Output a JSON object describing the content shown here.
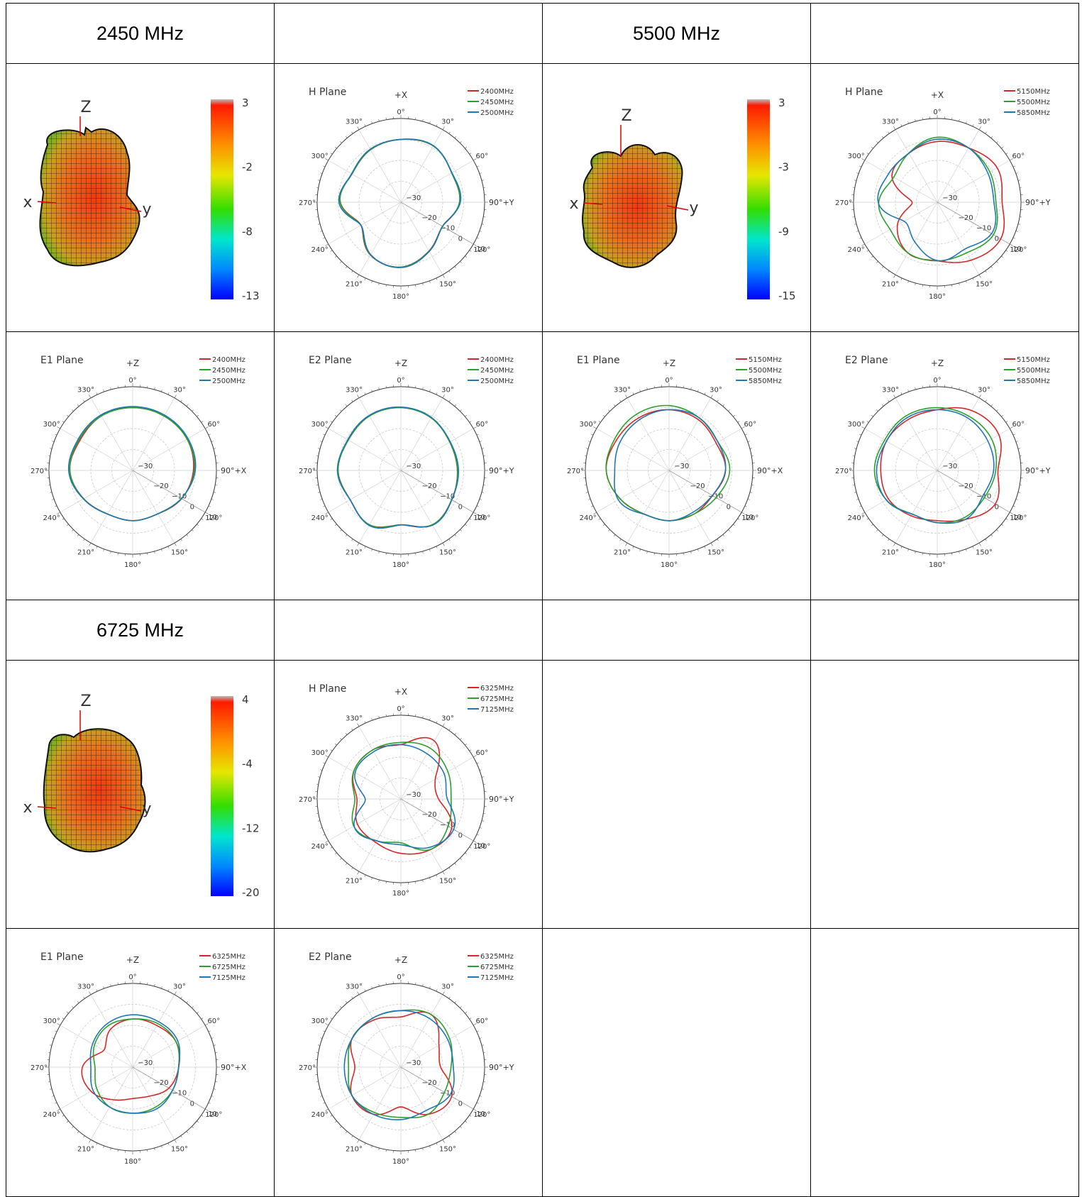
{
  "headers": [
    {
      "row": 0,
      "col": 0,
      "text": "2450 MHz"
    },
    {
      "row": 0,
      "col": 2,
      "text": "5500 MHz"
    },
    {
      "row": 3,
      "col": 0,
      "text": "6725 MHz"
    }
  ],
  "angle_labels": [
    "0°",
    "30°",
    "60°",
    "90°",
    "120°",
    "150°",
    "180°",
    "210°",
    "240°",
    "270°",
    "300°",
    "330°"
  ],
  "radial_labels": [
    "−30",
    "−20",
    "−10",
    "0",
    "10"
  ],
  "colors": {
    "red": "#d62728",
    "green": "#2ca02c",
    "blue": "#1f77b4"
  },
  "chart_data": [
    {
      "id": "p3d-2450",
      "row": 1,
      "col": 0,
      "type": "3d-pattern",
      "colorbar": {
        "ticks": [
          "3",
          "-2",
          "-8",
          "-13"
        ],
        "max": 3,
        "min": -13
      },
      "axes_labels": {
        "z": "Z",
        "x": "x",
        "y": "y"
      },
      "shape": "a"
    },
    {
      "id": "h-2450",
      "row": 1,
      "col": 1,
      "type": "polar",
      "title": "H Plane",
      "top_axis": "+X",
      "right_axis": "+Y",
      "rlim": [
        -30,
        10
      ],
      "r_ticks": [
        -30,
        -20,
        -10,
        0,
        10
      ],
      "series": [
        {
          "name": "2400MHz",
          "color": "red",
          "r": [
            0,
            1,
            -2,
            -2,
            -7,
            -3,
            1,
            -1,
            -8,
            -1,
            -3,
            -1
          ],
          "phase": -1
        },
        {
          "name": "2450MHz",
          "color": "green",
          "r": [
            0,
            1,
            -2,
            -2,
            -7,
            -3,
            1,
            -1,
            -8,
            -1,
            -3,
            -1
          ],
          "phase": 0
        },
        {
          "name": "2500MHz",
          "color": "blue",
          "r": [
            0,
            1.2,
            -1.8,
            -1.5,
            -7,
            -3,
            1.2,
            -1,
            -8,
            -0.5,
            -2.8,
            -0.8
          ],
          "phase": 1
        }
      ]
    },
    {
      "id": "p3d-5500",
      "row": 1,
      "col": 2,
      "type": "3d-pattern",
      "colorbar": {
        "ticks": [
          "3",
          "-3",
          "-9",
          "-15"
        ],
        "max": 3,
        "min": -15
      },
      "axes_labels": {
        "z": "Z",
        "x": "x",
        "y": "y"
      },
      "shape": "b"
    },
    {
      "id": "h-5500",
      "row": 1,
      "col": 3,
      "type": "polar",
      "title": "H Plane",
      "top_axis": "+X",
      "right_axis": "+Y",
      "rlim": [
        -30,
        10
      ],
      "r_ticks": [
        -30,
        -20,
        -10,
        0,
        10
      ],
      "series": [
        {
          "name": "5150MHz",
          "color": "red",
          "r": [
            -1,
            0,
            3,
            1,
            5,
            2,
            -2,
            -2,
            -8,
            -18,
            -5,
            -3
          ],
          "phase": 0
        },
        {
          "name": "5500MHz",
          "color": "green",
          "r": [
            1,
            0,
            -1,
            -2,
            1,
            -2,
            -2,
            -2,
            -4,
            -2,
            -6,
            -3
          ],
          "phase": 1
        },
        {
          "name": "5850MHz",
          "color": "blue",
          "r": [
            0,
            0,
            -2,
            -3,
            0,
            -4,
            -2,
            -8,
            -12,
            -2,
            -3,
            -3
          ],
          "phase": 2
        }
      ]
    },
    {
      "id": "e1-2450",
      "row": 2,
      "col": 0,
      "type": "polar",
      "title": "E1 Plane",
      "top_axis": "+Z",
      "right_axis": "+X",
      "rlim": [
        -30,
        10
      ],
      "r_ticks": [
        -30,
        -20,
        -10,
        0,
        10
      ],
      "series": [
        {
          "name": "2400MHz",
          "color": "red",
          "r": [
            0,
            0,
            0,
            -1,
            -3,
            -6,
            -6,
            -6,
            -3,
            0,
            -1,
            0
          ],
          "phase": 0
        },
        {
          "name": "2450MHz",
          "color": "green",
          "r": [
            0,
            0,
            0,
            -0.5,
            -3,
            -6,
            -6,
            -6,
            -3,
            0,
            -0.5,
            0
          ],
          "phase": 1
        },
        {
          "name": "2500MHz",
          "color": "blue",
          "r": [
            0.5,
            0.5,
            0.5,
            0,
            -3,
            -6,
            -6,
            -6,
            -3,
            0.5,
            0,
            0.5
          ],
          "phase": 2
        }
      ]
    },
    {
      "id": "e2-2450",
      "row": 2,
      "col": 1,
      "type": "polar",
      "title": "E2 Plane",
      "top_axis": "+Z",
      "right_axis": "+Y",
      "rlim": [
        -30,
        10
      ],
      "r_ticks": [
        -30,
        -20,
        -10,
        0,
        10
      ],
      "series": [
        {
          "name": "2400MHz",
          "color": "red",
          "r": [
            0,
            -1,
            -3,
            -3,
            -2,
            0,
            -4,
            0,
            -2,
            0,
            -1,
            0
          ],
          "phase": 0
        },
        {
          "name": "2450MHz",
          "color": "green",
          "r": [
            0,
            -1,
            -3,
            -3,
            -2,
            0,
            -4,
            0,
            -2,
            0,
            -1,
            0
          ],
          "phase": 1
        },
        {
          "name": "2500MHz",
          "color": "blue",
          "r": [
            0.3,
            -0.7,
            -2.7,
            -2.5,
            -2,
            0.3,
            -4,
            0.3,
            -2,
            0.3,
            -0.7,
            0.3
          ],
          "phase": 2
        }
      ]
    },
    {
      "id": "e1-5500",
      "row": 2,
      "col": 2,
      "type": "polar",
      "title": "E1 Plane",
      "top_axis": "+Z",
      "right_axis": "+X",
      "rlim": [
        -30,
        10
      ],
      "r_ticks": [
        -30,
        -20,
        -10,
        0,
        10
      ],
      "series": [
        {
          "name": "5150MHz",
          "color": "red",
          "r": [
            -1,
            -2,
            -4,
            -3,
            -6,
            -6,
            -6,
            -6,
            -3,
            0,
            -1,
            -1
          ],
          "phase": 0
        },
        {
          "name": "5500MHz",
          "color": "green",
          "r": [
            1,
            -1,
            -3,
            -1,
            -4,
            -6,
            -6,
            -6,
            -3,
            0,
            0,
            1
          ],
          "phase": 1
        },
        {
          "name": "5850MHz",
          "color": "blue",
          "r": [
            -1,
            -1,
            -3,
            -3,
            -6,
            -7,
            -6,
            -6,
            -2,
            -4,
            -3,
            -2
          ],
          "phase": 2
        }
      ]
    },
    {
      "id": "e2-5500",
      "row": 2,
      "col": 3,
      "type": "polar",
      "title": "E2 Plane",
      "top_axis": "+Z",
      "right_axis": "+Y",
      "rlim": [
        -30,
        10
      ],
      "r_ticks": [
        -30,
        -20,
        -10,
        0,
        10
      ],
      "series": [
        {
          "name": "5150MHz",
          "color": "red",
          "r": [
            -1,
            3,
            4,
            -1,
            2,
            -3,
            -6,
            -5,
            -3,
            -3,
            -2,
            -2
          ],
          "phase": 0
        },
        {
          "name": "5500MHz",
          "color": "green",
          "r": [
            0,
            0,
            0,
            -2,
            -4,
            -4,
            -5,
            -6,
            -2,
            0,
            -1,
            0
          ],
          "phase": 1
        },
        {
          "name": "5850MHz",
          "color": "blue",
          "r": [
            -1,
            -1,
            -2,
            -3,
            -5,
            -3,
            -5,
            -6,
            -2,
            -1,
            -2,
            -1
          ],
          "phase": 2
        }
      ]
    },
    {
      "id": "p3d-6725",
      "row": 4,
      "col": 0,
      "type": "3d-pattern",
      "colorbar": {
        "ticks": [
          "4",
          "-4",
          "-12",
          "-20"
        ],
        "max": 4,
        "min": -20
      },
      "axes_labels": {
        "z": "Z",
        "x": "x",
        "y": "y"
      },
      "shape": "c"
    },
    {
      "id": "h-6725",
      "row": 4,
      "col": 1,
      "type": "polar",
      "title": "H Plane",
      "top_axis": "+X",
      "right_axis": "+Y",
      "rlim": [
        -30,
        10
      ],
      "r_ticks": [
        -30,
        -20,
        -10,
        0,
        10
      ],
      "series": [
        {
          "name": "6325MHz",
          "color": "red",
          "r": [
            -4,
            2,
            -11,
            -12,
            -2,
            -2,
            -4,
            -6,
            -6,
            -9,
            -4,
            -3
          ],
          "phase": 0
        },
        {
          "name": "6725MHz",
          "color": "green",
          "r": [
            -3,
            -2,
            -4,
            -6,
            -4,
            -2,
            -9,
            -7,
            -4,
            -8,
            -4,
            -3
          ],
          "phase": 1
        },
        {
          "name": "7125MHz",
          "color": "blue",
          "r": [
            -4,
            -5,
            -6,
            -8,
            -1,
            -3,
            -8,
            -7,
            -4,
            -13,
            -5,
            -4
          ],
          "phase": 2
        }
      ]
    },
    {
      "id": "e1-6725",
      "row": 5,
      "col": 0,
      "type": "polar",
      "title": "E1 Plane",
      "top_axis": "+Z",
      "right_axis": "+X",
      "rlim": [
        -30,
        10
      ],
      "r_ticks": [
        -30,
        -20,
        -10,
        0,
        10
      ],
      "series": [
        {
          "name": "6325MHz",
          "color": "red",
          "r": [
            -7,
            -7,
            -6,
            -8,
            -10,
            -14,
            -15,
            -12,
            -7,
            -6,
            -14,
            -9
          ],
          "phase": 0
        },
        {
          "name": "6725MHz",
          "color": "green",
          "r": [
            -7,
            -6,
            -6,
            -8,
            -8,
            -8,
            -8,
            -8,
            -10,
            -12,
            -9,
            -7
          ],
          "phase": 1
        },
        {
          "name": "7125MHz",
          "color": "blue",
          "r": [
            -5,
            -5,
            -5,
            -8,
            -8,
            -7,
            -8,
            -8,
            -8,
            -10,
            -8,
            -6
          ],
          "phase": 2
        }
      ]
    },
    {
      "id": "e2-6725",
      "row": 5,
      "col": 1,
      "type": "polar",
      "title": "E2 Plane",
      "top_axis": "+Z",
      "right_axis": "+Y",
      "rlim": [
        -30,
        10
      ],
      "r_ticks": [
        -30,
        -20,
        -10,
        0,
        10
      ],
      "series": [
        {
          "name": "6325MHz",
          "color": "red",
          "r": [
            -6,
            -1,
            -9,
            -11,
            -2,
            -4,
            -11,
            -4,
            -3,
            -8,
            -3,
            -4
          ],
          "phase": 0
        },
        {
          "name": "6725MHz",
          "color": "green",
          "r": [
            -3,
            -1,
            -3,
            -6,
            -6,
            -4,
            -6,
            -5,
            -3,
            -5,
            -3,
            -3
          ],
          "phase": 1
        },
        {
          "name": "7125MHz",
          "color": "blue",
          "r": [
            -3,
            -3,
            -4,
            -5,
            -3,
            -6,
            -5,
            -4,
            -3,
            -3,
            -3,
            -3
          ],
          "phase": 2
        }
      ]
    }
  ]
}
